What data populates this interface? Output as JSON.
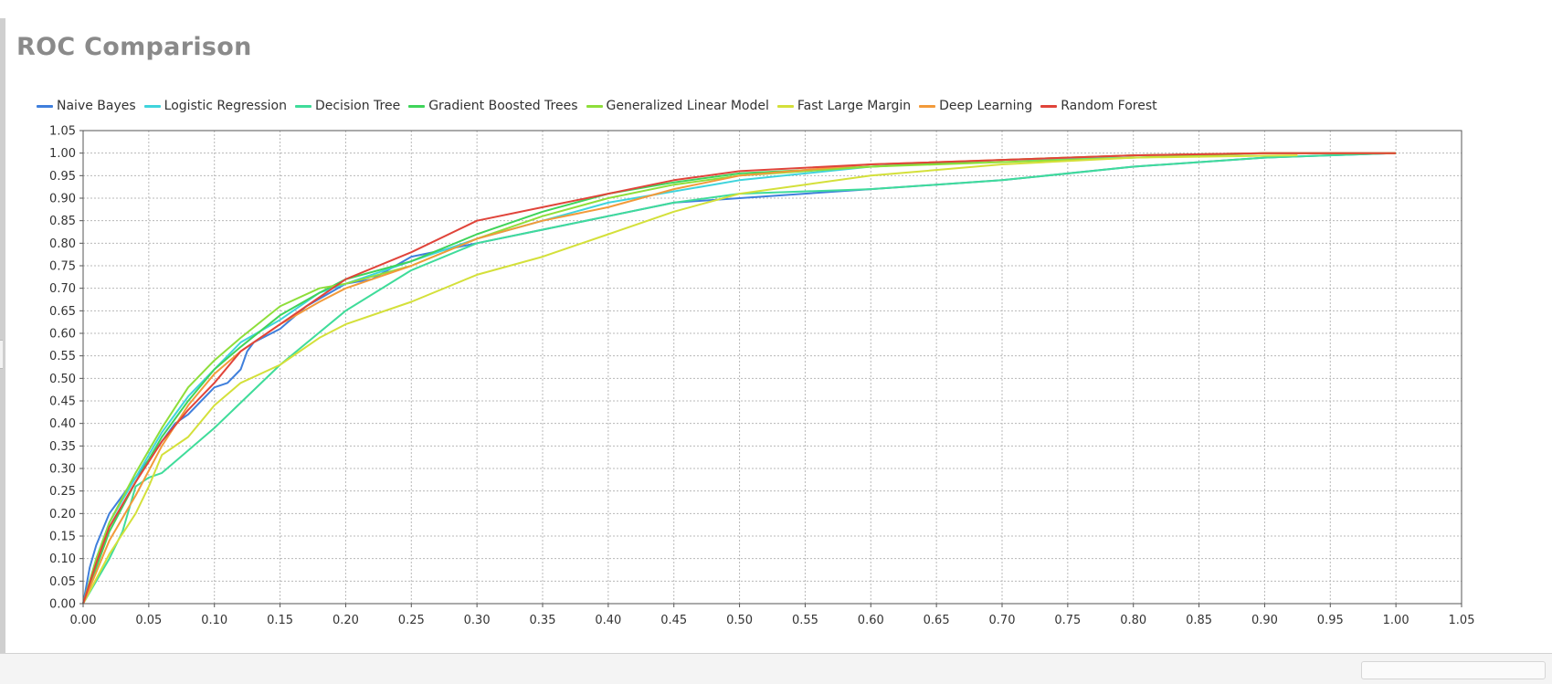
{
  "window": {
    "title": "ROC Comparison"
  },
  "chart_data": {
    "type": "line",
    "title": "ROC Comparison",
    "xlabel": "",
    "ylabel": "",
    "xlim": [
      0,
      1.05
    ],
    "ylim": [
      0,
      1.05
    ],
    "xticks": [
      "0.00",
      "0.05",
      "0.10",
      "0.15",
      "0.20",
      "0.25",
      "0.30",
      "0.35",
      "0.40",
      "0.45",
      "0.50",
      "0.55",
      "0.60",
      "0.65",
      "0.70",
      "0.75",
      "0.80",
      "0.85",
      "0.90",
      "0.95",
      "1.00",
      "1.05"
    ],
    "yticks": [
      "0.00",
      "0.05",
      "0.10",
      "0.15",
      "0.20",
      "0.25",
      "0.30",
      "0.35",
      "0.40",
      "0.45",
      "0.50",
      "0.55",
      "0.60",
      "0.65",
      "0.70",
      "0.75",
      "0.80",
      "0.85",
      "0.90",
      "0.95",
      "1.00",
      "1.05"
    ],
    "grid": true,
    "legend_position": "top-left",
    "series": [
      {
        "name": "Naive Bayes",
        "color": "#3f7fdc",
        "points": [
          [
            0,
            0
          ],
          [
            0.005,
            0.08
          ],
          [
            0.01,
            0.13
          ],
          [
            0.02,
            0.2
          ],
          [
            0.03,
            0.24
          ],
          [
            0.04,
            0.28
          ],
          [
            0.05,
            0.32
          ],
          [
            0.06,
            0.36
          ],
          [
            0.07,
            0.4
          ],
          [
            0.08,
            0.42
          ],
          [
            0.09,
            0.45
          ],
          [
            0.1,
            0.48
          ],
          [
            0.11,
            0.49
          ],
          [
            0.12,
            0.52
          ],
          [
            0.125,
            0.56
          ],
          [
            0.13,
            0.58
          ],
          [
            0.15,
            0.61
          ],
          [
            0.17,
            0.66
          ],
          [
            0.2,
            0.71
          ],
          [
            0.22,
            0.72
          ],
          [
            0.25,
            0.77
          ],
          [
            0.3,
            0.8
          ],
          [
            0.35,
            0.83
          ],
          [
            0.4,
            0.86
          ],
          [
            0.45,
            0.89
          ],
          [
            0.5,
            0.9
          ],
          [
            0.6,
            0.92
          ],
          [
            0.7,
            0.94
          ],
          [
            0.8,
            0.97
          ],
          [
            0.9,
            0.99
          ],
          [
            1.0,
            1.0
          ]
        ]
      },
      {
        "name": "Logistic Regression",
        "color": "#3fd4dc",
        "points": [
          [
            0,
            0
          ],
          [
            0.01,
            0.1
          ],
          [
            0.02,
            0.18
          ],
          [
            0.04,
            0.28
          ],
          [
            0.06,
            0.38
          ],
          [
            0.08,
            0.46
          ],
          [
            0.1,
            0.52
          ],
          [
            0.12,
            0.58
          ],
          [
            0.15,
            0.63
          ],
          [
            0.18,
            0.69
          ],
          [
            0.2,
            0.71
          ],
          [
            0.25,
            0.76
          ],
          [
            0.3,
            0.81
          ],
          [
            0.35,
            0.85
          ],
          [
            0.4,
            0.89
          ],
          [
            0.5,
            0.94
          ],
          [
            0.6,
            0.97
          ],
          [
            0.7,
            0.985
          ],
          [
            0.8,
            0.99
          ],
          [
            0.9,
            1.0
          ],
          [
            1.0,
            1.0
          ]
        ]
      },
      {
        "name": "Decision Tree",
        "color": "#3fdc9a",
        "points": [
          [
            0,
            0
          ],
          [
            0.02,
            0.1
          ],
          [
            0.03,
            0.16
          ],
          [
            0.04,
            0.26
          ],
          [
            0.05,
            0.28
          ],
          [
            0.06,
            0.29
          ],
          [
            0.08,
            0.34
          ],
          [
            0.1,
            0.39
          ],
          [
            0.15,
            0.53
          ],
          [
            0.2,
            0.65
          ],
          [
            0.25,
            0.74
          ],
          [
            0.3,
            0.8
          ],
          [
            0.35,
            0.83
          ],
          [
            0.4,
            0.86
          ],
          [
            0.45,
            0.89
          ],
          [
            0.5,
            0.91
          ],
          [
            0.6,
            0.92
          ],
          [
            0.7,
            0.94
          ],
          [
            0.8,
            0.97
          ],
          [
            0.9,
            0.99
          ],
          [
            1.0,
            1.0
          ]
        ]
      },
      {
        "name": "Gradient Boosted Trees",
        "color": "#3fd45a",
        "points": [
          [
            0,
            0
          ],
          [
            0.01,
            0.08
          ],
          [
            0.02,
            0.16
          ],
          [
            0.04,
            0.27
          ],
          [
            0.06,
            0.37
          ],
          [
            0.08,
            0.45
          ],
          [
            0.1,
            0.52
          ],
          [
            0.12,
            0.57
          ],
          [
            0.15,
            0.64
          ],
          [
            0.18,
            0.69
          ],
          [
            0.2,
            0.72
          ],
          [
            0.25,
            0.76
          ],
          [
            0.3,
            0.82
          ],
          [
            0.35,
            0.87
          ],
          [
            0.4,
            0.91
          ],
          [
            0.45,
            0.935
          ],
          [
            0.5,
            0.955
          ],
          [
            0.6,
            0.97
          ],
          [
            0.7,
            0.985
          ],
          [
            0.8,
            0.995
          ],
          [
            0.9,
            1.0
          ],
          [
            1.0,
            1.0
          ]
        ]
      },
      {
        "name": "Generalized Linear Model",
        "color": "#8ede3a",
        "points": [
          [
            0,
            0
          ],
          [
            0.01,
            0.1
          ],
          [
            0.02,
            0.18
          ],
          [
            0.04,
            0.29
          ],
          [
            0.06,
            0.39
          ],
          [
            0.08,
            0.48
          ],
          [
            0.1,
            0.54
          ],
          [
            0.12,
            0.59
          ],
          [
            0.15,
            0.66
          ],
          [
            0.18,
            0.7
          ],
          [
            0.2,
            0.71
          ],
          [
            0.25,
            0.75
          ],
          [
            0.3,
            0.81
          ],
          [
            0.35,
            0.86
          ],
          [
            0.4,
            0.9
          ],
          [
            0.45,
            0.93
          ],
          [
            0.5,
            0.95
          ],
          [
            0.6,
            0.97
          ],
          [
            0.7,
            0.98
          ],
          [
            0.8,
            0.99
          ],
          [
            0.9,
            1.0
          ],
          [
            1.0,
            1.0
          ]
        ]
      },
      {
        "name": "Fast Large Margin",
        "color": "#d4e03a",
        "points": [
          [
            0,
            0
          ],
          [
            0.02,
            0.11
          ],
          [
            0.04,
            0.2
          ],
          [
            0.05,
            0.26
          ],
          [
            0.06,
            0.33
          ],
          [
            0.08,
            0.37
          ],
          [
            0.1,
            0.44
          ],
          [
            0.12,
            0.49
          ],
          [
            0.15,
            0.53
          ],
          [
            0.18,
            0.59
          ],
          [
            0.2,
            0.62
          ],
          [
            0.25,
            0.67
          ],
          [
            0.3,
            0.73
          ],
          [
            0.35,
            0.77
          ],
          [
            0.4,
            0.82
          ],
          [
            0.45,
            0.87
          ],
          [
            0.5,
            0.91
          ],
          [
            0.55,
            0.93
          ],
          [
            0.6,
            0.95
          ],
          [
            0.7,
            0.975
          ],
          [
            0.8,
            0.99
          ],
          [
            0.925,
            0.995
          ]
        ]
      },
      {
        "name": "Deep Learning",
        "color": "#f29a3a",
        "points": [
          [
            0,
            0
          ],
          [
            0.01,
            0.07
          ],
          [
            0.02,
            0.14
          ],
          [
            0.04,
            0.24
          ],
          [
            0.06,
            0.35
          ],
          [
            0.08,
            0.44
          ],
          [
            0.1,
            0.51
          ],
          [
            0.12,
            0.56
          ],
          [
            0.15,
            0.62
          ],
          [
            0.18,
            0.67
          ],
          [
            0.2,
            0.7
          ],
          [
            0.25,
            0.75
          ],
          [
            0.3,
            0.81
          ],
          [
            0.35,
            0.85
          ],
          [
            0.4,
            0.88
          ],
          [
            0.45,
            0.92
          ],
          [
            0.5,
            0.95
          ],
          [
            0.6,
            0.975
          ],
          [
            0.7,
            0.985
          ],
          [
            0.8,
            0.995
          ],
          [
            0.9,
            1.0
          ],
          [
            1.0,
            1.0
          ]
        ]
      },
      {
        "name": "Random Forest",
        "color": "#e0443a",
        "points": [
          [
            0,
            0
          ],
          [
            0.01,
            0.09
          ],
          [
            0.02,
            0.17
          ],
          [
            0.04,
            0.27
          ],
          [
            0.06,
            0.36
          ],
          [
            0.08,
            0.43
          ],
          [
            0.1,
            0.49
          ],
          [
            0.12,
            0.56
          ],
          [
            0.15,
            0.62
          ],
          [
            0.18,
            0.68
          ],
          [
            0.2,
            0.72
          ],
          [
            0.25,
            0.78
          ],
          [
            0.3,
            0.85
          ],
          [
            0.35,
            0.88
          ],
          [
            0.4,
            0.91
          ],
          [
            0.45,
            0.94
          ],
          [
            0.5,
            0.96
          ],
          [
            0.6,
            0.975
          ],
          [
            0.7,
            0.985
          ],
          [
            0.8,
            0.995
          ],
          [
            0.9,
            1.0
          ],
          [
            1.0,
            1.0
          ]
        ]
      }
    ]
  }
}
